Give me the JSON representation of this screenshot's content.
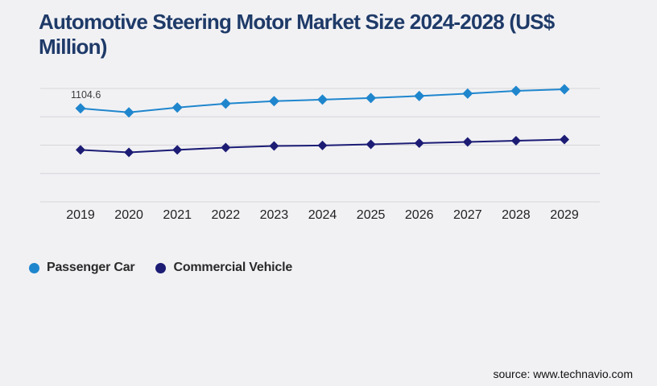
{
  "title": "Automotive Steering Motor Market Size 2024-2028 (US$ Million)",
  "source": "source: www.technavio.com",
  "colors": {
    "background": "#f1f1f4",
    "title": "#1e3a68",
    "gridline": "#d6d6d9",
    "axis_text": "#222222",
    "annotation_text": "#3c3c3c"
  },
  "chart_data": {
    "type": "line",
    "title": "Automotive Steering Motor Market Size 2024-2028 (US$ Million)",
    "categories": [
      "2019",
      "2020",
      "2021",
      "2022",
      "2023",
      "2024",
      "2025",
      "2026",
      "2027",
      "2028",
      "2029"
    ],
    "series": [
      {
        "name": "Passenger Car",
        "color": "#1f86cd",
        "values": [
          1104.6,
          1057,
          1114,
          1161,
          1190,
          1208,
          1227,
          1251,
          1279,
          1312,
          1331
        ]
      },
      {
        "name": "Commercial Vehicle",
        "color": "#1c1c75",
        "values": [
          614,
          585,
          614,
          642,
          661,
          666,
          680,
          694,
          708,
          722,
          736
        ]
      }
    ],
    "annotations": [
      {
        "series": "Passenger Car",
        "category": "2019",
        "text": "1104.6"
      }
    ],
    "xlabel": "",
    "ylabel": "",
    "ylim": [
      0,
      1340
    ],
    "gridlines": 5,
    "grid": "horizontal-only",
    "y_axis_labels_visible": false,
    "marker_shape": "diamond",
    "legend_position": "bottom-left"
  }
}
